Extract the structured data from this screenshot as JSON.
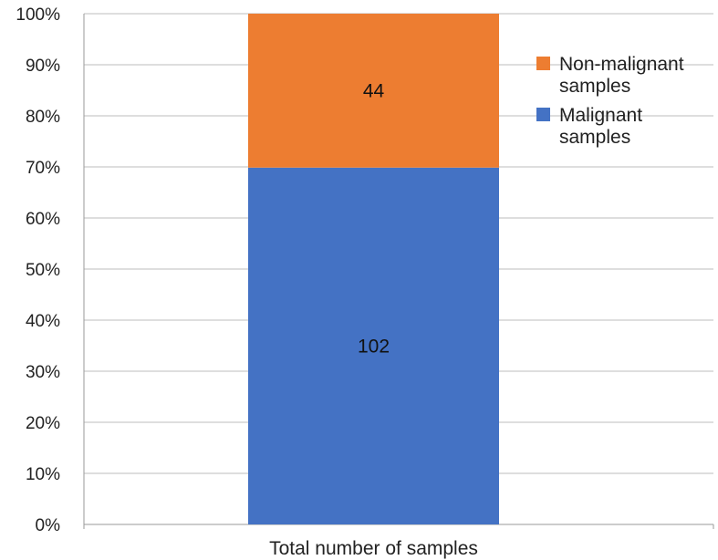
{
  "chart_data": {
    "type": "bar",
    "stacked": true,
    "normalized": true,
    "categories": [
      "Total number of  samples"
    ],
    "series": [
      {
        "name_lines": [
          "Malignant",
          "samples"
        ],
        "values": [
          102
        ],
        "color": "#4472C4"
      },
      {
        "name_lines": [
          "Non-malignant",
          "samples"
        ],
        "values": [
          44
        ],
        "color": "#ED7D31"
      }
    ],
    "ylim": [
      0,
      100
    ],
    "y_ticks": [
      "0%",
      "10%",
      "20%",
      "30%",
      "40%",
      "50%",
      "60%",
      "70%",
      "80%",
      "90%",
      "100%"
    ],
    "grid": true,
    "legend": "right",
    "legend_order": [
      1,
      0
    ]
  }
}
